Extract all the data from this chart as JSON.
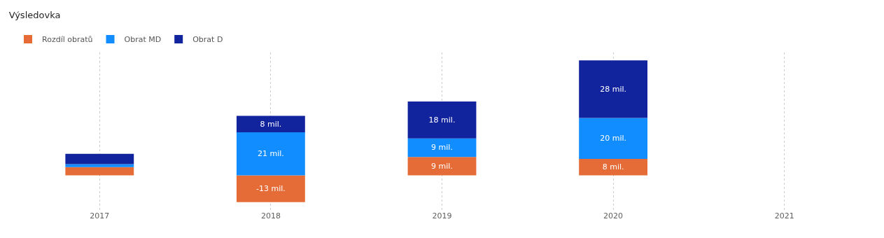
{
  "chart_data": {
    "type": "bar",
    "title": "Výsledovka",
    "stacked": true,
    "categories": [
      "2017",
      "2018",
      "2019",
      "2020",
      "2021"
    ],
    "series": [
      {
        "name": "Rozdíl obratů",
        "color": "#e66c37",
        "values": [
          4,
          -13,
          9,
          8,
          0
        ],
        "value_labels": [
          null,
          "-13 mil.",
          "9 mil.",
          "8 mil.",
          null
        ]
      },
      {
        "name": "Obrat MD",
        "color": "#118dff",
        "values": [
          1.5,
          21,
          9,
          20,
          0
        ],
        "value_labels": [
          null,
          "21 mil.",
          "9 mil.",
          "20 mil.",
          null
        ]
      },
      {
        "name": "Obrat D",
        "color": "#12239e",
        "values": [
          5,
          8,
          18,
          28,
          0
        ],
        "value_labels": [
          null,
          "8 mil.",
          "18 mil.",
          "28 mil.",
          null
        ]
      }
    ],
    "legend": "top left",
    "grid": "x"
  }
}
